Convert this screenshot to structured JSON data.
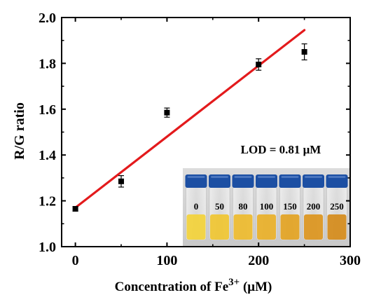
{
  "chart_data": {
    "type": "scatter",
    "title": "",
    "xlabel": "Concentration of Fe",
    "xlabel_sup": "3+",
    "xlabel_unit": " (μM)",
    "ylabel": "R/G ratio",
    "xlim": [
      -15,
      300
    ],
    "ylim": [
      1.0,
      2.0
    ],
    "x_ticks": [
      0,
      100,
      200,
      300
    ],
    "y_ticks": [
      1.0,
      1.2,
      1.4,
      1.6,
      1.8,
      2.0
    ],
    "x_tick_labels": [
      "0",
      "100",
      "200",
      "300"
    ],
    "y_tick_labels": [
      "1.0",
      "1.2",
      "1.4",
      "1.6",
      "1.8",
      "2.0"
    ],
    "grid": false,
    "series": [
      {
        "x": [
          0,
          50,
          100,
          200,
          250
        ],
        "y": [
          1.165,
          1.285,
          1.585,
          1.795,
          1.85
        ],
        "error": [
          0.01,
          0.025,
          0.02,
          0.025,
          0.035
        ],
        "marker": "square",
        "color": "#000000"
      }
    ],
    "fit_line": {
      "x": [
        0,
        250
      ],
      "y": [
        1.17,
        1.945
      ],
      "color": "#e31a1c"
    },
    "annotations": {
      "lod_text": "LOD = 0.81 μM"
    },
    "inset_photo": {
      "vial_labels": [
        "0",
        "50",
        "80",
        "100",
        "150",
        "200",
        "250"
      ],
      "cap_color": "#1c4fa3",
      "liquid_colors": [
        "#f3d23a",
        "#f0c531",
        "#eebb2c",
        "#e9b028",
        "#e3a322",
        "#dc951d",
        "#d58b1a"
      ]
    }
  }
}
